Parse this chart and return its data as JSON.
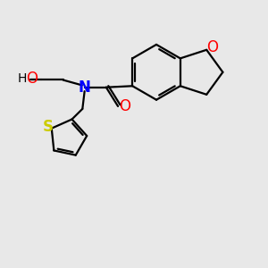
{
  "bg_color": "#e8e8e8",
  "atom_colors": {
    "O": "#ff0000",
    "N": "#0000ff",
    "S": "#cccc00",
    "C": "#000000"
  },
  "bond_lw": 1.6,
  "font_size": 11,
  "fig_size": [
    3.0,
    3.0
  ],
  "dpi": 100
}
